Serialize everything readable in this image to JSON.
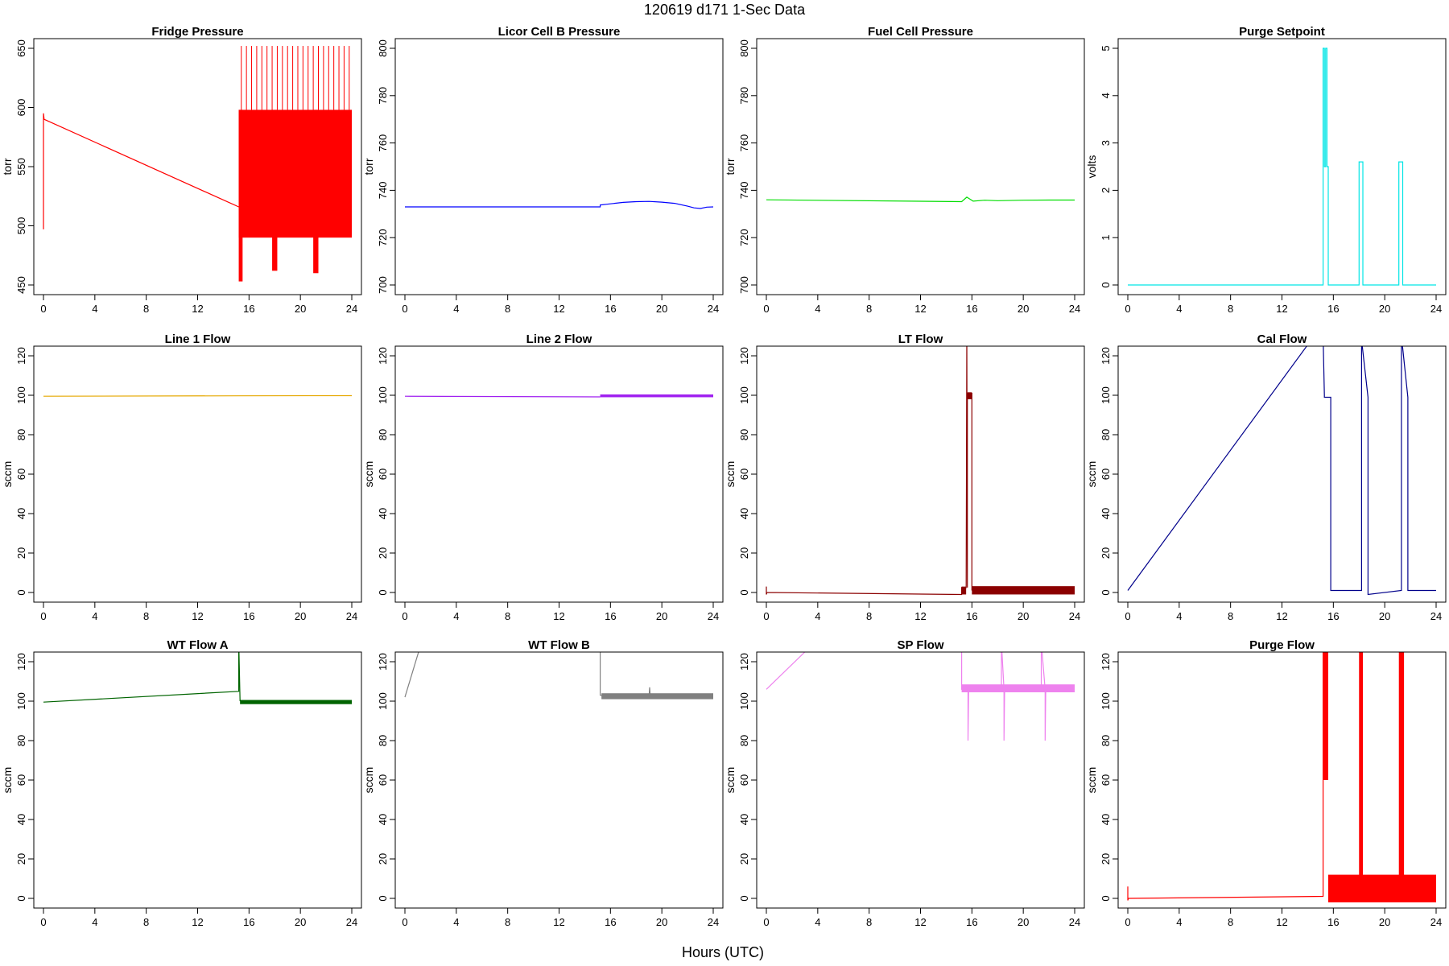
{
  "figure": {
    "title": "120619   d171   1-Sec Data",
    "xlabel": "Hours (UTC)"
  },
  "chart_data": [
    {
      "type": "line",
      "title": "Fridge Pressure",
      "ylabel": "torr",
      "color": "#ff0000",
      "xlim": [
        0,
        24
      ],
      "ylim": [
        450,
        650
      ],
      "xticks": [
        0,
        4,
        8,
        12,
        16,
        20,
        24
      ],
      "yticks": [
        450,
        500,
        550,
        600,
        650
      ],
      "series": [
        {
          "x": [
            0,
            0,
            0.05,
            15.2
          ],
          "y": [
            497,
            595,
            590,
            516
          ]
        }
      ],
      "bands": [
        {
          "x0": 15.2,
          "x1": 24,
          "low": 490,
          "high": 598
        },
        {
          "x0": 15.2,
          "x1": 15.5,
          "low": 453,
          "high": 598
        },
        {
          "x0": 17.8,
          "x1": 18.2,
          "low": 462,
          "high": 598
        },
        {
          "x0": 21.0,
          "x1": 21.4,
          "low": 460,
          "high": 598
        }
      ],
      "spikes": {
        "x": [
          15.4,
          15.8,
          16.2,
          16.6,
          17.0,
          17.4,
          17.8,
          18.2,
          18.6,
          19.0,
          19.4,
          19.8,
          20.2,
          20.6,
          21.0,
          21.4,
          21.8,
          22.2,
          22.6,
          23.0,
          23.4,
          23.8
        ],
        "y0": 598,
        "y1": 652
      }
    },
    {
      "type": "line",
      "title": "Licor Cell B Pressure",
      "ylabel": "torr",
      "color": "#0000ff",
      "xlim": [
        0,
        24
      ],
      "ylim": [
        700,
        800
      ],
      "xticks": [
        0,
        4,
        8,
        12,
        16,
        20,
        24
      ],
      "yticks": [
        700,
        720,
        740,
        760,
        780,
        800
      ],
      "series": [
        {
          "x": [
            0,
            15.2,
            15.2,
            16,
            17,
            18,
            19,
            20,
            21,
            22,
            22.5,
            23,
            23.5,
            24
          ],
          "y": [
            733,
            733,
            733.8,
            734.3,
            734.9,
            735.2,
            735.3,
            735.0,
            734.5,
            733.3,
            732.6,
            732.3,
            732.9,
            733.0
          ]
        }
      ]
    },
    {
      "type": "line",
      "title": "Fuel Cell Pressure",
      "ylabel": "torr",
      "color": "#00dd00",
      "xlim": [
        0,
        24
      ],
      "ylim": [
        700,
        800
      ],
      "xticks": [
        0,
        4,
        8,
        12,
        16,
        20,
        24
      ],
      "yticks": [
        700,
        720,
        740,
        760,
        780,
        800
      ],
      "series": [
        {
          "x": [
            0,
            15.2,
            15.6,
            16.1,
            17,
            18,
            20,
            22,
            24
          ],
          "y": [
            736,
            735.2,
            737.1,
            735.4,
            735.8,
            735.6,
            735.8,
            735.9,
            735.9
          ]
        }
      ]
    },
    {
      "type": "line",
      "title": "Purge Setpoint",
      "ylabel": "volts",
      "color": "#00e5e5",
      "xlim": [
        0,
        24
      ],
      "ylim": [
        0,
        5
      ],
      "xticks": [
        0,
        4,
        8,
        12,
        16,
        20,
        24
      ],
      "yticks": [
        0,
        1,
        2,
        3,
        4,
        5
      ],
      "series": [
        {
          "x": [
            0,
            15.2,
            15.2,
            15.3,
            15.3,
            15.4,
            15.4,
            15.5,
            15.5,
            15.6,
            15.6,
            18.0,
            18.0,
            18.3,
            18.3,
            21.1,
            21.1,
            21.4,
            21.4,
            24
          ],
          "y": [
            0,
            0,
            5,
            5,
            2.5,
            2.5,
            5,
            5,
            2.5,
            2.5,
            0,
            0,
            2.6,
            2.6,
            0,
            0,
            2.6,
            2.6,
            0,
            0
          ]
        }
      ]
    },
    {
      "type": "line",
      "title": "Line 1 Flow",
      "ylabel": "sccm",
      "color": "#e6a800",
      "xlim": [
        0,
        24
      ],
      "ylim": [
        0,
        120
      ],
      "xticks": [
        0,
        4,
        8,
        12,
        16,
        20,
        24
      ],
      "yticks": [
        0,
        20,
        40,
        60,
        80,
        100,
        120
      ],
      "series": [
        {
          "x": [
            0,
            15.2,
            24
          ],
          "y": [
            99.5,
            99.7,
            99.8
          ]
        }
      ]
    },
    {
      "type": "line",
      "title": "Line 2 Flow",
      "ylabel": "sccm",
      "color": "#a020f0",
      "xlim": [
        0,
        24
      ],
      "ylim": [
        0,
        120
      ],
      "xticks": [
        0,
        4,
        8,
        12,
        16,
        20,
        24
      ],
      "yticks": [
        0,
        20,
        40,
        60,
        80,
        100,
        120
      ],
      "series": [
        {
          "x": [
            0,
            15.2
          ],
          "y": [
            99.5,
            99.2
          ]
        }
      ],
      "bands": [
        {
          "x0": 15.2,
          "x1": 24,
          "low": 99.0,
          "high": 100.4
        }
      ]
    },
    {
      "type": "line",
      "title": "LT Flow",
      "ylabel": "sccm",
      "color": "#8b0000",
      "xlim": [
        0,
        24
      ],
      "ylim": [
        0,
        120
      ],
      "xticks": [
        0,
        4,
        8,
        12,
        16,
        20,
        24
      ],
      "yticks": [
        0,
        20,
        40,
        60,
        80,
        100,
        120
      ],
      "series": [
        {
          "x": [
            0,
            0,
            0.05,
            15.2,
            15.2,
            15.55,
            15.6,
            15.65,
            15.65,
            16.0,
            16.0
          ],
          "y": [
            3,
            -1,
            0,
            -1,
            2.5,
            2.5,
            130,
            2.5,
            101,
            101,
            1
          ]
        }
      ],
      "bands": [
        {
          "x0": 15.2,
          "x1": 15.55,
          "low": -1,
          "high": 3
        },
        {
          "x0": 15.65,
          "x1": 16.0,
          "low": 98,
          "high": 101.5
        },
        {
          "x0": 16.0,
          "x1": 24,
          "low": -1,
          "high": 3.2
        }
      ]
    },
    {
      "type": "line",
      "title": "Cal Flow",
      "ylabel": "sccm",
      "color": "#00008b",
      "xlim": [
        0,
        24
      ],
      "ylim": [
        0,
        120
      ],
      "xticks": [
        0,
        4,
        8,
        12,
        16,
        20,
        24
      ],
      "yticks": [
        0,
        20,
        40,
        60,
        80,
        100,
        120
      ],
      "series": [
        {
          "x": [
            0,
            14.5,
            15.2,
            15.3,
            15.3,
            15.8,
            15.8,
            18.2,
            18.2,
            18.7,
            18.7,
            21.3,
            21.3,
            21.8,
            21.8,
            24
          ],
          "y": [
            1,
            130,
            130,
            100,
            99,
            99,
            1,
            1,
            128,
            99,
            -1,
            1,
            130,
            99,
            1,
            1
          ]
        }
      ]
    },
    {
      "type": "line",
      "title": "WT Flow A",
      "ylabel": "sccm",
      "color": "#006400",
      "xlim": [
        0,
        24
      ],
      "ylim": [
        0,
        120
      ],
      "xticks": [
        0,
        4,
        8,
        12,
        16,
        20,
        24
      ],
      "yticks": [
        0,
        20,
        40,
        60,
        80,
        100,
        120
      ],
      "series": [
        {
          "x": [
            0,
            15.2,
            15.2,
            15.3
          ],
          "y": [
            99.5,
            105,
            130,
            100
          ]
        }
      ],
      "bands": [
        {
          "x0": 15.3,
          "x1": 24,
          "low": 98.5,
          "high": 100.6
        }
      ]
    },
    {
      "type": "line",
      "title": "WT Flow B",
      "ylabel": "sccm",
      "color": "#808080",
      "xlim": [
        0,
        24
      ],
      "ylim": [
        0,
        120
      ],
      "xticks": [
        0,
        4,
        8,
        12,
        16,
        20,
        24
      ],
      "yticks": [
        0,
        20,
        40,
        60,
        80,
        100,
        120
      ],
      "series": [
        {
          "x": [
            0,
            1.3
          ],
          "y": [
            102,
            130
          ]
        },
        {
          "x": [
            15.2,
            15.2,
            15.5,
            19.0,
            19.05,
            19.1,
            24
          ],
          "y": [
            130,
            103,
            102.8,
            102.3,
            107,
            102.3,
            102.2
          ]
        }
      ],
      "bands": [
        {
          "x0": 15.3,
          "x1": 24,
          "low": 101,
          "high": 104
        }
      ]
    },
    {
      "type": "line",
      "title": "SP Flow",
      "ylabel": "sccm",
      "color": "#ee82ee",
      "xlim": [
        0,
        24
      ],
      "ylim": [
        0,
        120
      ],
      "xticks": [
        0,
        4,
        8,
        12,
        16,
        20,
        24
      ],
      "yticks": [
        0,
        20,
        40,
        60,
        80,
        100,
        120
      ],
      "series": [
        {
          "x": [
            0,
            3.8
          ],
          "y": [
            106,
            130
          ]
        },
        {
          "x": [
            15.2,
            15.2,
            15.7,
            15.7,
            15.75,
            18.3,
            18.3,
            18.5,
            18.5,
            18.55,
            21.4,
            21.4,
            21.7,
            21.7,
            21.75,
            24
          ],
          "y": [
            130,
            106,
            106,
            80,
            106,
            106,
            130,
            106,
            80,
            106,
            106,
            130,
            106,
            80,
            106,
            106
          ]
        }
      ],
      "bands": [
        {
          "x0": 15.2,
          "x1": 24,
          "low": 104.5,
          "high": 108.5
        }
      ]
    },
    {
      "type": "line",
      "title": "Purge Flow",
      "ylabel": "sccm",
      "color": "#ff0000",
      "xlim": [
        0,
        24
      ],
      "ylim": [
        0,
        120
      ],
      "xticks": [
        0,
        4,
        8,
        12,
        16,
        20,
        24
      ],
      "yticks": [
        0,
        20,
        40,
        60,
        80,
        100,
        120
      ],
      "series": [
        {
          "x": [
            0,
            0,
            0.05,
            15.2,
            15.2
          ],
          "y": [
            6,
            -1,
            0,
            1,
            130
          ]
        }
      ],
      "bands": [
        {
          "x0": 15.2,
          "x1": 15.6,
          "low": 60,
          "high": 130
        },
        {
          "x0": 15.6,
          "x1": 24,
          "low": -2,
          "high": 12
        },
        {
          "x0": 18.0,
          "x1": 18.3,
          "low": 0,
          "high": 126
        },
        {
          "x0": 21.1,
          "x1": 21.5,
          "low": 0,
          "high": 130
        }
      ]
    }
  ]
}
